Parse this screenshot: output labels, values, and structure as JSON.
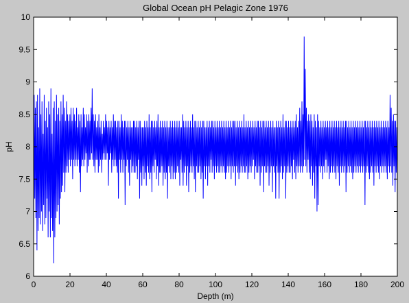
{
  "chart_data": {
    "type": "line",
    "title": "Global Ocean pH Pelagic Zone 1976",
    "xlabel": "Depth (m)",
    "ylabel": "pH",
    "xlim": [
      0,
      200
    ],
    "ylim": [
      6,
      10
    ],
    "xticks": [
      0,
      20,
      40,
      60,
      80,
      100,
      120,
      140,
      160,
      180,
      200
    ],
    "yticks": [
      6,
      6.5,
      7,
      7.5,
      8,
      8.5,
      9,
      9.5,
      10
    ],
    "grid": false,
    "colors": {
      "line": "#0000ff",
      "axes_bg": "#ffffff",
      "figure_bg": "#c8c8c8"
    },
    "series": [
      {
        "values": [
          6.5,
          8.8,
          7.2,
          8.6,
          6.9,
          8.7,
          6.4,
          8.8,
          6.7,
          8.3,
          6.9,
          8.9,
          6.8,
          8.5,
          7.0,
          8.7,
          6.7,
          8.2,
          7.1,
          8.8,
          6.8,
          8.4,
          6.9,
          8.6,
          7.2,
          8.3,
          6.6,
          8.7,
          7.0,
          8.5,
          6.6,
          8.9,
          6.9,
          8.2,
          6.7,
          8.6,
          6.2,
          8.7,
          6.6,
          8.4,
          6.9,
          8.8,
          7.0,
          8.5,
          7.1,
          8.6,
          6.8,
          8.4,
          7.2,
          8.7,
          7.3,
          8.5,
          7.4,
          8.8,
          7.6,
          8.6,
          7.3,
          8.4,
          7.6,
          8.7,
          7.7,
          8.5,
          7.6,
          8.4,
          7.8,
          8.5,
          7.7,
          8.6,
          7.8,
          8.4,
          7.5,
          8.6,
          7.8,
          8.5,
          7.7,
          8.4,
          7.8,
          8.6,
          7.7,
          8.3,
          7.8,
          8.5,
          7.6,
          8.4,
          7.3,
          8.5,
          7.7,
          8.3,
          7.8,
          8.6,
          7.7,
          8.5,
          7.8,
          8.3,
          7.9,
          8.5,
          7.6,
          8.4,
          7.7,
          8.5,
          7.8,
          8.4,
          7.8,
          8.6,
          7.9,
          8.9,
          7.8,
          8.5,
          7.7,
          8.4,
          7.6,
          8.5,
          7.8,
          8.3,
          7.8,
          8.4,
          7.6,
          8.5,
          7.7,
          8.3,
          7.8,
          8.4,
          7.6,
          8.2,
          7.8,
          8.4,
          7.9,
          8.3,
          7.8,
          8.5,
          7.8,
          8.4,
          7.9,
          8.3,
          7.4,
          8.4,
          7.8,
          8.3,
          7.9,
          8.4,
          7.6,
          8.3,
          7.8,
          8.5,
          7.7,
          8.4,
          7.8,
          8.4,
          7.7,
          8.3,
          7.6,
          8.4,
          7.2,
          8.4,
          7.8,
          8.3,
          7.6,
          8.5,
          7.8,
          8.4,
          7.6,
          8.3,
          7.8,
          8.4,
          7.1,
          8.4,
          7.7,
          8.3,
          7.8,
          8.4,
          7.6,
          8.3,
          7.4,
          8.4,
          7.8,
          8.3,
          7.6,
          8.3,
          7.7,
          8.4,
          7.6,
          8.4,
          7.6,
          8.3,
          7.7,
          8.4,
          7.5,
          8.3,
          7.8,
          8.4,
          7.2,
          8.4,
          7.6,
          8.3,
          7.4,
          8.3,
          7.7,
          8.3,
          7.5,
          8.4,
          7.6,
          8.3,
          7.4,
          8.4,
          7.7,
          8.3,
          7.6,
          8.5,
          7.5,
          8.3,
          7.6,
          8.4,
          7.3,
          8.4,
          7.7,
          8.3,
          7.6,
          8.4,
          7.8,
          8.3,
          7.5,
          8.4,
          7.7,
          8.5,
          7.4,
          8.3,
          7.6,
          8.4,
          7.6,
          8.3,
          7.7,
          8.4,
          7.4,
          8.3,
          7.6,
          8.4,
          7.5,
          8.3,
          7.6,
          8.4,
          7.2,
          8.3,
          7.7,
          8.3,
          7.6,
          8.4,
          7.5,
          8.3,
          7.7,
          8.4,
          7.5,
          8.3,
          7.6,
          8.4,
          7.5,
          8.3,
          7.6,
          8.4,
          7.7,
          8.3,
          7.6,
          8.4,
          7.4,
          8.3,
          7.8,
          8.3,
          7.6,
          8.5,
          7.4,
          8.4,
          7.6,
          8.3,
          7.7,
          8.4,
          7.4,
          8.3,
          7.7,
          8.4,
          7.3,
          8.3,
          7.6,
          8.4,
          7.7,
          8.3,
          7.6,
          8.5,
          7.7,
          8.3,
          7.5,
          8.4,
          7.3,
          8.4,
          7.7,
          8.3,
          7.6,
          8.4,
          7.6,
          8.3,
          7.7,
          8.4,
          7.5,
          8.3,
          7.6,
          8.4,
          7.2,
          8.4,
          7.7,
          8.3,
          7.5,
          8.3,
          7.7,
          8.4,
          7.4,
          8.3,
          7.7,
          8.4,
          7.6,
          8.3,
          7.8,
          8.4,
          7.6,
          8.4,
          7.7,
          8.3,
          7.5,
          8.4,
          7.7,
          8.3,
          7.6,
          8.4,
          7.7,
          8.3,
          7.6,
          8.4,
          7.6,
          8.3,
          7.7,
          8.4,
          7.6,
          8.3,
          7.7,
          8.4,
          7.6,
          8.3,
          7.5,
          8.4,
          7.6,
          8.3,
          7.7,
          8.4,
          7.6,
          8.3,
          7.7,
          8.4,
          7.5,
          8.3,
          7.7,
          8.4,
          7.6,
          8.4,
          7.7,
          8.4,
          7.4,
          8.3,
          7.7,
          8.4,
          7.6,
          8.3,
          7.5,
          8.4,
          7.6,
          8.3,
          7.7,
          8.4,
          7.6,
          8.3,
          7.7,
          8.5,
          7.6,
          8.3,
          7.6,
          8.4,
          7.7,
          8.3,
          7.5,
          8.4,
          7.6,
          8.3,
          7.7,
          8.4,
          7.6,
          8.3,
          7.7,
          8.4,
          7.8,
          8.3,
          7.5,
          8.4,
          7.7,
          8.3,
          7.6,
          8.4,
          7.6,
          8.4,
          7.7,
          8.3,
          7.4,
          8.4,
          7.6,
          8.3,
          7.7,
          8.4,
          7.3,
          8.4,
          7.7,
          8.3,
          7.6,
          8.4,
          7.6,
          8.3,
          7.7,
          8.4,
          7.4,
          8.3,
          7.6,
          8.4,
          7.7,
          8.3,
          7.3,
          8.4,
          7.7,
          8.3,
          7.6,
          8.3,
          7.2,
          8.4,
          7.7,
          8.3,
          7.6,
          8.4,
          7.2,
          8.3,
          7.6,
          8.4,
          7.7,
          8.3,
          7.5,
          8.5,
          7.6,
          8.3,
          7.7,
          8.4,
          7.2,
          8.4,
          7.6,
          8.3,
          7.7,
          8.4,
          7.6,
          8.3,
          7.6,
          8.4,
          7.7,
          8.3,
          7.5,
          8.4,
          7.8,
          8.3,
          7.6,
          8.4,
          7.5,
          8.5,
          7.7,
          8.3,
          7.6,
          8.4,
          7.7,
          8.6,
          7.6,
          8.4,
          7.7,
          8.7,
          7.6,
          8.5,
          7.7,
          9.7,
          7.8,
          9.2,
          7.7,
          8.6,
          7.6,
          8.4,
          7.8,
          8.5,
          7.6,
          8.4,
          7.5,
          8.5,
          7.7,
          8.4,
          7.4,
          8.3,
          7.6,
          8.5,
          7.2,
          8.4,
          7.7,
          8.3,
          7.0,
          8.5,
          7.1,
          8.4,
          7.7,
          8.3,
          7.6,
          8.4,
          7.7,
          8.3,
          7.5,
          8.4,
          7.7,
          8.3,
          7.6,
          8.4,
          7.8,
          8.3,
          7.6,
          8.4,
          7.7,
          8.3,
          7.5,
          8.4,
          7.6,
          8.3,
          7.7,
          8.4,
          7.6,
          8.3,
          7.7,
          8.4,
          7.6,
          8.3,
          7.5,
          8.4,
          7.7,
          8.3,
          7.6,
          8.4,
          7.4,
          8.3,
          7.7,
          8.4,
          7.6,
          8.3,
          7.7,
          8.4,
          7.6,
          8.3,
          7.7,
          8.4,
          7.3,
          8.4,
          7.6,
          8.3,
          7.7,
          8.4,
          7.6,
          8.3,
          7.7,
          8.4,
          7.6,
          8.3,
          7.5,
          8.4,
          7.6,
          8.3,
          7.7,
          8.4,
          7.6,
          8.3,
          7.7,
          8.4,
          7.6,
          8.3,
          7.7,
          8.4,
          7.6,
          8.3,
          7.7,
          8.4,
          7.6,
          8.3,
          7.7,
          8.4,
          7.1,
          8.4,
          7.6,
          8.3,
          7.7,
          8.4,
          7.6,
          8.3,
          7.5,
          8.4,
          7.6,
          8.3,
          7.7,
          8.4,
          7.6,
          8.3,
          7.4,
          8.4,
          7.7,
          8.3,
          7.6,
          8.4,
          7.7,
          8.3,
          7.6,
          8.4,
          7.5,
          8.3,
          7.7,
          8.4,
          7.6,
          8.3,
          7.7,
          8.4,
          7.6,
          8.3,
          7.7,
          8.4,
          7.6,
          8.3,
          7.5,
          8.4,
          7.7,
          8.3,
          7.6,
          8.8,
          7.7,
          8.6,
          7.6,
          8.4,
          7.4,
          8.5,
          7.7,
          8.4,
          7.3,
          8.4,
          7.6,
          8.3,
          7.4
        ]
      }
    ]
  }
}
